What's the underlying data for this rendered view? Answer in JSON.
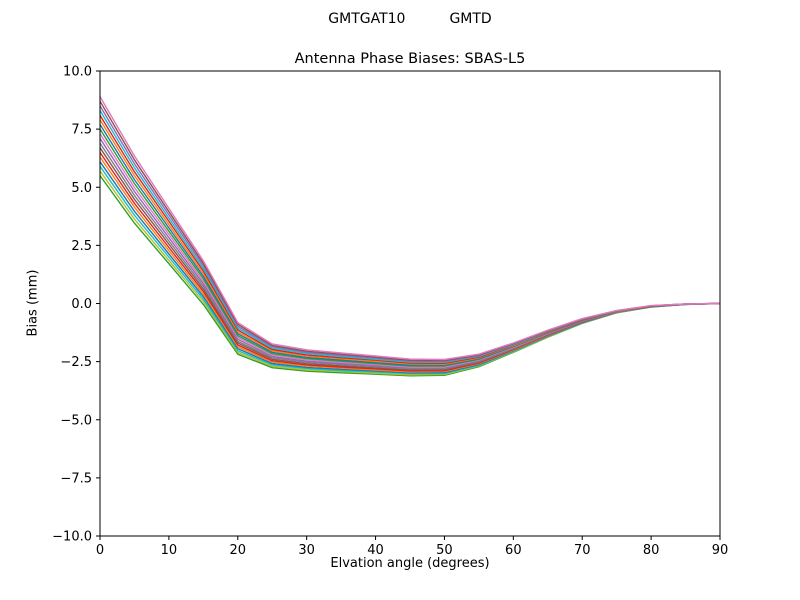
{
  "figure": {
    "header_left": "GMTGAT10",
    "header_right": "GMTD",
    "title": "Antenna Phase Biases: SBAS-L5"
  },
  "chart_data": {
    "type": "line",
    "title": "Antenna Phase Biases: SBAS-L5",
    "xlabel": "Elvation angle (degrees)",
    "ylabel": "Bias (mm)",
    "xlim": [
      0,
      90
    ],
    "ylim": [
      -10,
      10
    ],
    "xticks": [
      0,
      10,
      20,
      30,
      40,
      50,
      60,
      70,
      80,
      90
    ],
    "xtick_labels": [
      "0",
      "10",
      "20",
      "30",
      "40",
      "50",
      "60",
      "70",
      "80",
      "90"
    ],
    "yticks": [
      10,
      7.5,
      5,
      2.5,
      0,
      -2.5,
      -5,
      -7.5,
      -10
    ],
    "ytick_labels": [
      "10.0",
      "7.5",
      "5.0",
      "2.5",
      "0.0",
      "−2.5",
      "−5.0",
      "−7.5",
      "−10.0"
    ],
    "grid": false,
    "legend": "none",
    "x": [
      0,
      5,
      10,
      15,
      20,
      25,
      30,
      35,
      40,
      45,
      50,
      55,
      60,
      65,
      70,
      75,
      80,
      85,
      90
    ],
    "series": [
      {
        "color": "#2ca02c",
        "values": [
          5.5,
          3.46,
          1.71,
          -0.04,
          -2.18,
          -2.76,
          -2.91,
          -2.98,
          -3.04,
          -3.11,
          -3.09,
          -2.72,
          -2.1,
          -1.45,
          -0.85,
          -0.4,
          -0.15,
          -0.04,
          0.0
        ]
      },
      {
        "color": "#bcbd22",
        "values": [
          5.7,
          3.63,
          1.85,
          0.08,
          -2.1,
          -2.7,
          -2.86,
          -2.93,
          -3.0,
          -3.07,
          -3.05,
          -2.69,
          -2.08,
          -1.44,
          -0.84,
          -0.4,
          -0.14,
          -0.04,
          0.0
        ]
      },
      {
        "color": "#17becf",
        "values": [
          5.9,
          3.8,
          1.99,
          0.19,
          -2.02,
          -2.64,
          -2.8,
          -2.88,
          -2.95,
          -3.02,
          -3.01,
          -2.66,
          -2.06,
          -1.42,
          -0.83,
          -0.39,
          -0.14,
          -0.04,
          0.0
        ]
      },
      {
        "color": "#1f77b4",
        "values": [
          6.1,
          3.97,
          2.13,
          0.3,
          -1.94,
          -2.58,
          -2.75,
          -2.83,
          -2.9,
          -2.98,
          -2.97,
          -2.63,
          -2.03,
          -1.4,
          -0.82,
          -0.38,
          -0.14,
          -0.04,
          0.0
        ]
      },
      {
        "color": "#ff7f0e",
        "values": [
          6.3,
          4.14,
          2.27,
          0.41,
          -1.86,
          -2.52,
          -2.69,
          -2.78,
          -2.86,
          -2.94,
          -2.93,
          -2.59,
          -2.01,
          -1.38,
          -0.8,
          -0.38,
          -0.13,
          -0.03,
          0.0
        ]
      },
      {
        "color": "#d62728",
        "values": [
          6.5,
          4.31,
          2.41,
          0.52,
          -1.78,
          -2.46,
          -2.64,
          -2.73,
          -2.81,
          -2.9,
          -2.89,
          -2.56,
          -1.98,
          -1.36,
          -0.79,
          -0.37,
          -0.13,
          -0.03,
          0.0
        ]
      },
      {
        "color": "#8c564b",
        "values": [
          6.7,
          4.48,
          2.55,
          0.63,
          -1.7,
          -2.4,
          -2.59,
          -2.68,
          -2.77,
          -2.86,
          -2.85,
          -2.53,
          -1.96,
          -1.35,
          -0.78,
          -0.37,
          -0.13,
          -0.03,
          0.0
        ]
      },
      {
        "color": "#7f7f7f",
        "values": [
          6.9,
          4.65,
          2.69,
          0.74,
          -1.62,
          -2.34,
          -2.53,
          -2.63,
          -2.72,
          -2.81,
          -2.81,
          -2.5,
          -1.94,
          -1.33,
          -0.77,
          -0.36,
          -0.12,
          -0.03,
          0.0
        ]
      },
      {
        "color": "#9467bd",
        "values": [
          7.1,
          4.82,
          2.83,
          0.85,
          -1.54,
          -2.28,
          -2.48,
          -2.58,
          -2.67,
          -2.77,
          -2.77,
          -2.47,
          -1.91,
          -1.31,
          -0.76,
          -0.35,
          -0.12,
          -0.03,
          0.0
        ]
      },
      {
        "color": "#e377c2",
        "values": [
          7.3,
          4.99,
          2.97,
          0.96,
          -1.46,
          -2.22,
          -2.42,
          -2.53,
          -2.63,
          -2.73,
          -2.73,
          -2.43,
          -1.89,
          -1.29,
          -0.74,
          -0.35,
          -0.12,
          -0.03,
          0.0
        ]
      },
      {
        "color": "#2ca02c",
        "values": [
          7.5,
          5.16,
          3.11,
          1.07,
          -1.38,
          -2.16,
          -2.37,
          -2.48,
          -2.58,
          -2.69,
          -2.69,
          -2.4,
          -1.86,
          -1.27,
          -0.73,
          -0.34,
          -0.12,
          -0.03,
          0.0
        ]
      },
      {
        "color": "#1f77b4",
        "values": [
          7.7,
          5.33,
          3.25,
          1.18,
          -1.3,
          -2.1,
          -2.32,
          -2.43,
          -2.54,
          -2.65,
          -2.65,
          -2.37,
          -1.84,
          -1.26,
          -0.72,
          -0.34,
          -0.11,
          -0.03,
          0.0
        ]
      },
      {
        "color": "#ff7f0e",
        "values": [
          7.9,
          5.5,
          3.39,
          1.29,
          -1.22,
          -2.04,
          -2.26,
          -2.38,
          -2.49,
          -2.6,
          -2.61,
          -2.34,
          -1.82,
          -1.24,
          -0.71,
          -0.33,
          -0.11,
          -0.03,
          0.0
        ]
      },
      {
        "color": "#d62728",
        "values": [
          8.1,
          5.67,
          3.53,
          1.4,
          -1.14,
          -1.98,
          -2.21,
          -2.33,
          -2.44,
          -2.56,
          -2.57,
          -2.31,
          -1.79,
          -1.22,
          -0.7,
          -0.32,
          -0.11,
          -0.03,
          0.0
        ]
      },
      {
        "color": "#17becf",
        "values": [
          8.3,
          5.84,
          3.67,
          1.51,
          -1.06,
          -1.92,
          -2.15,
          -2.28,
          -2.4,
          -2.52,
          -2.53,
          -2.27,
          -1.77,
          -1.2,
          -0.68,
          -0.32,
          -0.1,
          -0.02,
          0.0
        ]
      },
      {
        "color": "#9467bd",
        "values": [
          8.5,
          6.01,
          3.81,
          1.62,
          -0.98,
          -1.86,
          -2.1,
          -2.23,
          -2.35,
          -2.48,
          -2.49,
          -2.24,
          -1.74,
          -1.18,
          -0.67,
          -0.31,
          -0.1,
          -0.02,
          0.0
        ]
      },
      {
        "color": "#8c564b",
        "values": [
          8.7,
          6.18,
          3.95,
          1.73,
          -0.9,
          -1.8,
          -2.05,
          -2.18,
          -2.31,
          -2.44,
          -2.45,
          -2.21,
          -1.72,
          -1.17,
          -0.66,
          -0.31,
          -0.1,
          -0.02,
          0.0
        ]
      },
      {
        "color": "#e377c2",
        "values": [
          8.9,
          6.35,
          4.09,
          1.84,
          -0.82,
          -1.74,
          -1.99,
          -2.13,
          -2.26,
          -2.39,
          -2.41,
          -2.18,
          -1.7,
          -1.15,
          -0.65,
          -0.3,
          -0.09,
          -0.02,
          0.0
        ]
      }
    ]
  }
}
